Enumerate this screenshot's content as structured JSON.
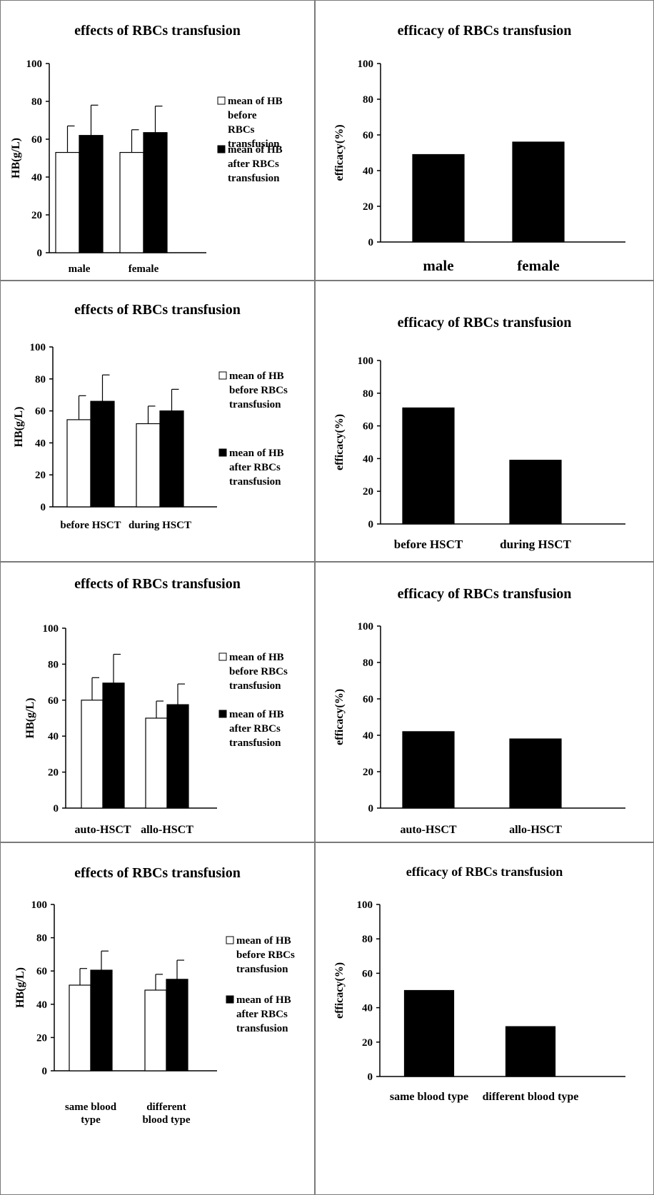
{
  "chart_data": [
    {
      "type": "bar",
      "title": "effects of RBCs transfusion",
      "ylabel": "HB(g/L)",
      "ylim": [
        0,
        100
      ],
      "yticks": [
        0,
        20,
        40,
        60,
        80,
        100
      ],
      "categories": [
        [
          "male"
        ],
        [
          "female"
        ]
      ],
      "series": [
        {
          "name": [
            "mean of HB",
            "before",
            "RBCs",
            "transfusion"
          ],
          "values": [
            53,
            53
          ],
          "error": [
            14,
            12
          ],
          "color": "#ffffff"
        },
        {
          "name": [
            "mean of HB",
            "after RBCs",
            "transfusion"
          ],
          "values": [
            62,
            63.5
          ],
          "error": [
            16,
            14
          ],
          "color": "#000000"
        }
      ]
    },
    {
      "type": "bar",
      "title": "efficacy of RBCs transfusion",
      "ylabel": "efficacy(%)",
      "ylim": [
        0,
        100
      ],
      "yticks": [
        0,
        20,
        40,
        60,
        80,
        100
      ],
      "categories": [
        [
          "male"
        ],
        [
          "female"
        ]
      ],
      "series": [
        {
          "values": [
            49,
            56
          ],
          "color": "#000000"
        }
      ]
    },
    {
      "type": "bar",
      "title": "effects of RBCs transfusion",
      "ylabel": "HB(g/L)",
      "ylim": [
        0,
        100
      ],
      "yticks": [
        0,
        20,
        40,
        60,
        80,
        100
      ],
      "categories": [
        [
          "before HSCT"
        ],
        [
          "during HSCT"
        ]
      ],
      "series": [
        {
          "name": [
            "mean of HB",
            "before RBCs",
            "transfusion"
          ],
          "values": [
            54.5,
            52
          ],
          "error": [
            15,
            11
          ],
          "color": "#ffffff"
        },
        {
          "name": [
            "mean of HB",
            "after RBCs",
            "transfusion"
          ],
          "values": [
            66,
            60
          ],
          "error": [
            16.5,
            13.5
          ],
          "color": "#000000"
        }
      ]
    },
    {
      "type": "bar",
      "title": "efficacy of RBCs transfusion",
      "ylabel": "efficacy(%)",
      "ylim": [
        0,
        100
      ],
      "yticks": [
        0,
        20,
        40,
        60,
        80,
        100
      ],
      "categories": [
        [
          "before HSCT"
        ],
        [
          "during HSCT"
        ]
      ],
      "series": [
        {
          "values": [
            71,
            39
          ],
          "color": "#000000"
        }
      ]
    },
    {
      "type": "bar",
      "title": "effects of RBCs transfusion",
      "ylabel": "HB(g/L)",
      "ylim": [
        0,
        100
      ],
      "yticks": [
        0,
        20,
        40,
        60,
        80,
        100
      ],
      "categories": [
        [
          "auto-HSCT"
        ],
        [
          "allo-HSCT"
        ]
      ],
      "series": [
        {
          "name": [
            "mean of HB",
            "before RBCs",
            "transfusion"
          ],
          "values": [
            60,
            50
          ],
          "error": [
            12.5,
            9.5
          ],
          "color": "#ffffff"
        },
        {
          "name": [
            "mean of HB",
            "after RBCs",
            "transfusion"
          ],
          "values": [
            69.5,
            57.5
          ],
          "error": [
            16,
            11.5
          ],
          "color": "#000000"
        }
      ]
    },
    {
      "type": "bar",
      "title": "efficacy of  RBCs transfusion",
      "ylabel": "efficacy(%)",
      "ylim": [
        0,
        100
      ],
      "yticks": [
        0,
        20,
        40,
        60,
        80,
        100
      ],
      "categories": [
        [
          "auto-HSCT"
        ],
        [
          "allo-HSCT"
        ]
      ],
      "series": [
        {
          "values": [
            42,
            38
          ],
          "color": "#000000"
        }
      ]
    },
    {
      "type": "bar",
      "title": "effects of RBCs transfusion",
      "ylabel": "HB(g/L)",
      "ylim": [
        0,
        100
      ],
      "yticks": [
        0,
        20,
        40,
        60,
        80,
        100
      ],
      "categories": [
        [
          "same blood",
          "type"
        ],
        [
          "different",
          "blood type"
        ]
      ],
      "series": [
        {
          "name": [
            "mean of HB",
            "before RBCs",
            "transfusion"
          ],
          "values": [
            51.5,
            48.5
          ],
          "error": [
            10,
            9.5
          ],
          "color": "#ffffff"
        },
        {
          "name": [
            "mean of HB",
            "after RBCs",
            "transfusion"
          ],
          "values": [
            60.5,
            55
          ],
          "error": [
            11.5,
            11.5
          ],
          "color": "#000000"
        }
      ]
    },
    {
      "type": "bar",
      "title": "efficacy of RBCs transfusion",
      "ylabel": "efficacy(%)",
      "ylim": [
        0,
        100
      ],
      "yticks": [
        0,
        20,
        40,
        60,
        80,
        100
      ],
      "categories": [
        [
          "same blood type"
        ],
        [
          "different blood type"
        ]
      ],
      "series": [
        {
          "values": [
            50,
            29
          ],
          "color": "#000000"
        }
      ]
    }
  ]
}
